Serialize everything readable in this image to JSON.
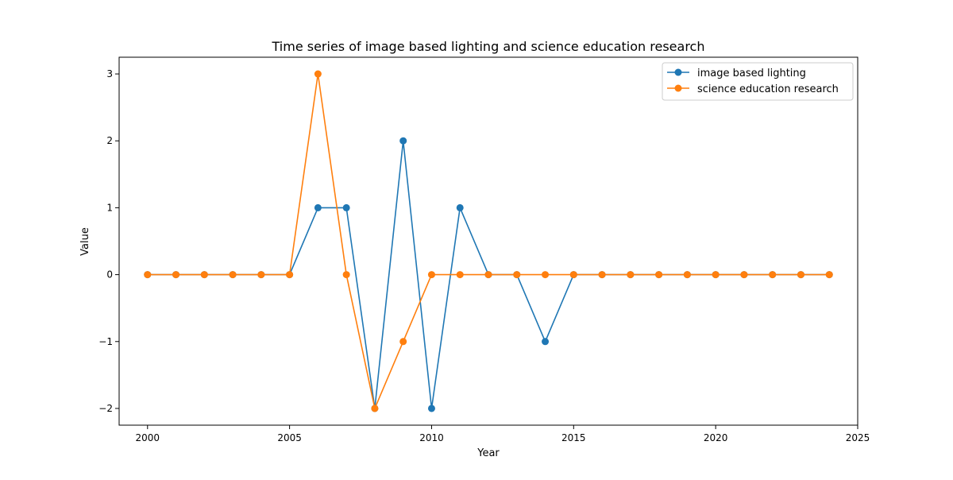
{
  "chart_data": {
    "type": "line",
    "title": "Time series of image based lighting and science education research",
    "xlabel": "Year",
    "ylabel": "Value",
    "xlim": [
      1999,
      2025
    ],
    "ylim": [
      -2.25,
      3.25
    ],
    "xticks": [
      2000,
      2005,
      2010,
      2015,
      2020,
      2025
    ],
    "yticks": [
      -2,
      -1,
      0,
      1,
      2,
      3
    ],
    "grid": false,
    "legend_position": "top-right",
    "x": [
      2000,
      2001,
      2002,
      2003,
      2004,
      2005,
      2006,
      2007,
      2008,
      2009,
      2010,
      2011,
      2012,
      2013,
      2014,
      2015,
      2016,
      2017,
      2018,
      2019,
      2020,
      2021,
      2022,
      2023,
      2024
    ],
    "series": [
      {
        "name": "image based lighting",
        "color": "#1f77b4",
        "values": [
          0,
          0,
          0,
          0,
          0,
          0,
          1,
          1,
          -2,
          2,
          -2,
          1,
          0,
          0,
          -1,
          0,
          0,
          0,
          0,
          0,
          0,
          0,
          0,
          0,
          0
        ]
      },
      {
        "name": "science education research",
        "color": "#ff7f0e",
        "values": [
          0,
          0,
          0,
          0,
          0,
          0,
          3,
          0,
          -2,
          -1,
          0,
          0,
          0,
          0,
          0,
          0,
          0,
          0,
          0,
          0,
          0,
          0,
          0,
          0,
          0
        ]
      }
    ]
  }
}
